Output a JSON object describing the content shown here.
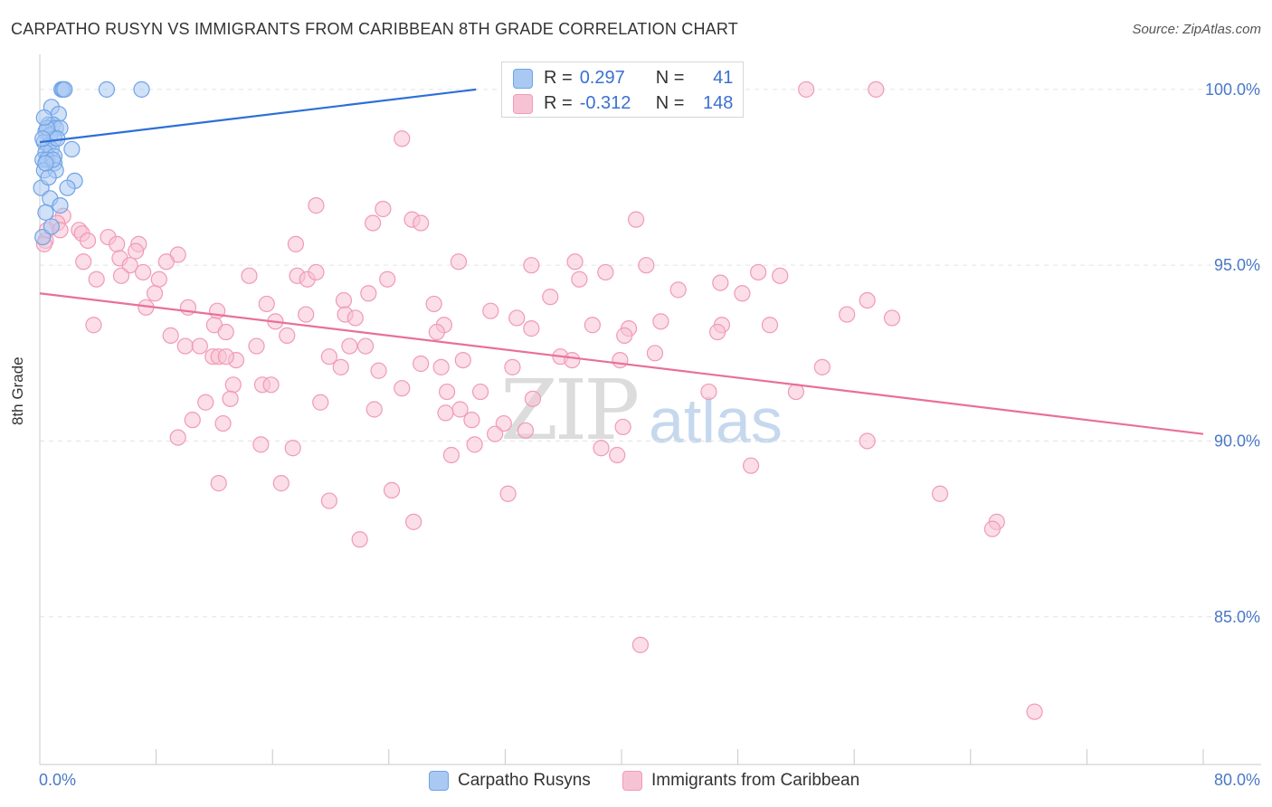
{
  "title": "CARPATHO RUSYN VS IMMIGRANTS FROM CARIBBEAN 8TH GRADE CORRELATION CHART",
  "source": "Source: ZipAtlas.com",
  "watermark": {
    "zip": "ZIP",
    "atlas": "atlas"
  },
  "stats": {
    "r_label": "R =",
    "n_label": "N =",
    "rows": [
      {
        "r": "0.297",
        "n": "41"
      },
      {
        "r": "-0.312",
        "n": "148"
      }
    ]
  },
  "chart_data": {
    "type": "scatter",
    "title": "CARPATHO RUSYN VS IMMIGRANTS FROM CARIBBEAN 8TH GRADE CORRELATION CHART",
    "xlabel": "",
    "ylabel": "8th Grade",
    "xlim": [
      0,
      80
    ],
    "ylim": [
      80.8,
      101.0
    ],
    "x_tick_labels": [
      "0.0%",
      "80.0%"
    ],
    "y_ticks": [
      85,
      90,
      95,
      100
    ],
    "y_tick_labels": [
      "85.0%",
      "90.0%",
      "95.0%",
      "100.0%"
    ],
    "grid": true,
    "legend_position": "bottom",
    "colors": {
      "blue": "#6fa3e6",
      "blue_line": "#2e6fd6",
      "blue_fill": "#a9c9f2",
      "pink": "#f09ab6",
      "pink_line": "#e8709a",
      "pink_fill": "#f7c3d4",
      "tick_text": "#4a78c7"
    },
    "series": [
      {
        "name": "Carpatho Rusyns",
        "color": "#6fa3e6",
        "trend": {
          "x": [
            0,
            30.0
          ],
          "y": [
            98.5,
            100.0
          ]
        },
        "points": [
          [
            1.5,
            100.0
          ],
          [
            1.6,
            100.0
          ],
          [
            1.7,
            100.0
          ],
          [
            4.6,
            100.0
          ],
          [
            7.0,
            100.0
          ],
          [
            0.8,
            99.5
          ],
          [
            1.3,
            99.3
          ],
          [
            0.6,
            99.0
          ],
          [
            0.9,
            99.0
          ],
          [
            1.1,
            98.9
          ],
          [
            1.4,
            98.9
          ],
          [
            0.4,
            98.8
          ],
          [
            0.7,
            98.7
          ],
          [
            1.0,
            98.6
          ],
          [
            0.3,
            98.5
          ],
          [
            0.6,
            98.4
          ],
          [
            0.8,
            98.3
          ],
          [
            2.2,
            98.3
          ],
          [
            0.4,
            98.2
          ],
          [
            1.0,
            98.1
          ],
          [
            0.2,
            98.0
          ],
          [
            0.5,
            98.0
          ],
          [
            1.0,
            97.9
          ],
          [
            0.3,
            97.7
          ],
          [
            1.1,
            97.7
          ],
          [
            2.4,
            97.4
          ],
          [
            0.1,
            97.2
          ],
          [
            1.9,
            97.2
          ],
          [
            0.7,
            96.9
          ],
          [
            1.4,
            96.7
          ],
          [
            0.4,
            96.5
          ],
          [
            0.2,
            95.8
          ],
          [
            0.5,
            98.9
          ],
          [
            0.9,
            98.0
          ],
          [
            0.3,
            99.2
          ],
          [
            1.2,
            98.6
          ],
          [
            0.6,
            97.5
          ],
          [
            0.2,
            98.6
          ],
          [
            0.8,
            96.1
          ],
          [
            0.4,
            97.9
          ],
          [
            37.4,
            100.0
          ]
        ]
      },
      {
        "name": "Immigrants from Caribbean",
        "color": "#f09ab6",
        "trend": {
          "x": [
            0,
            80
          ],
          "y": [
            94.2,
            90.2
          ]
        },
        "points": [
          [
            52.7,
            100.0
          ],
          [
            57.5,
            100.0
          ],
          [
            24.9,
            98.6
          ],
          [
            19.0,
            96.7
          ],
          [
            23.6,
            96.6
          ],
          [
            25.6,
            96.3
          ],
          [
            22.9,
            96.2
          ],
          [
            26.2,
            96.2
          ],
          [
            41.0,
            96.3
          ],
          [
            1.6,
            96.4
          ],
          [
            1.2,
            96.2
          ],
          [
            2.7,
            96.0
          ],
          [
            2.9,
            95.9
          ],
          [
            0.4,
            95.7
          ],
          [
            0.3,
            95.6
          ],
          [
            0.5,
            96.0
          ],
          [
            1.4,
            96.0
          ],
          [
            3.3,
            95.7
          ],
          [
            4.7,
            95.8
          ],
          [
            5.3,
            95.6
          ],
          [
            6.8,
            95.6
          ],
          [
            17.6,
            95.6
          ],
          [
            6.6,
            95.4
          ],
          [
            9.5,
            95.3
          ],
          [
            3.0,
            95.1
          ],
          [
            5.5,
            95.2
          ],
          [
            6.2,
            95.0
          ],
          [
            8.7,
            95.1
          ],
          [
            28.8,
            95.1
          ],
          [
            33.8,
            95.0
          ],
          [
            36.8,
            95.1
          ],
          [
            41.7,
            95.0
          ],
          [
            3.9,
            94.6
          ],
          [
            5.6,
            94.7
          ],
          [
            7.1,
            94.8
          ],
          [
            8.2,
            94.6
          ],
          [
            14.4,
            94.7
          ],
          [
            17.7,
            94.7
          ],
          [
            18.4,
            94.6
          ],
          [
            19.0,
            94.8
          ],
          [
            23.9,
            94.6
          ],
          [
            37.1,
            94.6
          ],
          [
            38.9,
            94.8
          ],
          [
            46.8,
            94.5
          ],
          [
            49.4,
            94.8
          ],
          [
            50.9,
            94.7
          ],
          [
            7.9,
            94.2
          ],
          [
            20.9,
            94.0
          ],
          [
            22.6,
            94.2
          ],
          [
            35.1,
            94.1
          ],
          [
            43.9,
            94.3
          ],
          [
            48.3,
            94.2
          ],
          [
            56.9,
            94.0
          ],
          [
            55.5,
            93.6
          ],
          [
            58.6,
            93.5
          ],
          [
            7.3,
            93.8
          ],
          [
            10.2,
            93.8
          ],
          [
            12.2,
            93.7
          ],
          [
            15.6,
            93.9
          ],
          [
            18.3,
            93.6
          ],
          [
            21.0,
            93.6
          ],
          [
            21.7,
            93.5
          ],
          [
            27.1,
            93.9
          ],
          [
            31.0,
            93.7
          ],
          [
            32.8,
            93.5
          ],
          [
            3.7,
            93.3
          ],
          [
            12.0,
            93.3
          ],
          [
            16.2,
            93.4
          ],
          [
            27.8,
            93.3
          ],
          [
            33.8,
            93.2
          ],
          [
            38.0,
            93.3
          ],
          [
            40.5,
            93.2
          ],
          [
            42.7,
            93.4
          ],
          [
            46.9,
            93.3
          ],
          [
            50.2,
            93.3
          ],
          [
            9.0,
            93.0
          ],
          [
            12.8,
            93.1
          ],
          [
            17.0,
            93.0
          ],
          [
            27.3,
            93.1
          ],
          [
            40.2,
            93.0
          ],
          [
            46.6,
            93.1
          ],
          [
            10.0,
            92.7
          ],
          [
            11.0,
            92.7
          ],
          [
            14.9,
            92.7
          ],
          [
            21.3,
            92.7
          ],
          [
            22.4,
            92.7
          ],
          [
            13.5,
            92.3
          ],
          [
            19.9,
            92.4
          ],
          [
            29.1,
            92.3
          ],
          [
            35.8,
            92.4
          ],
          [
            36.6,
            92.3
          ],
          [
            39.9,
            92.3
          ],
          [
            42.3,
            92.5
          ],
          [
            11.9,
            92.4
          ],
          [
            12.3,
            92.4
          ],
          [
            12.8,
            92.4
          ],
          [
            20.7,
            92.1
          ],
          [
            23.3,
            92.0
          ],
          [
            26.2,
            92.2
          ],
          [
            27.6,
            92.1
          ],
          [
            32.5,
            92.1
          ],
          [
            53.8,
            92.1
          ],
          [
            13.3,
            91.6
          ],
          [
            15.3,
            91.6
          ],
          [
            15.9,
            91.6
          ],
          [
            24.9,
            91.5
          ],
          [
            28.0,
            91.4
          ],
          [
            30.3,
            91.4
          ],
          [
            13.1,
            91.2
          ],
          [
            11.4,
            91.1
          ],
          [
            19.3,
            91.1
          ],
          [
            33.9,
            91.2
          ],
          [
            46.0,
            91.4
          ],
          [
            52.0,
            91.4
          ],
          [
            28.9,
            90.9
          ],
          [
            23.0,
            90.9
          ],
          [
            27.9,
            90.8
          ],
          [
            29.7,
            90.6
          ],
          [
            10.5,
            90.6
          ],
          [
            12.6,
            90.5
          ],
          [
            31.9,
            90.5
          ],
          [
            33.4,
            90.3
          ],
          [
            40.1,
            90.4
          ],
          [
            31.3,
            90.2
          ],
          [
            9.5,
            90.1
          ],
          [
            15.2,
            89.9
          ],
          [
            29.9,
            89.9
          ],
          [
            17.4,
            89.8
          ],
          [
            38.6,
            89.8
          ],
          [
            56.9,
            90.0
          ],
          [
            28.3,
            89.6
          ],
          [
            39.7,
            89.6
          ],
          [
            48.9,
            89.3
          ],
          [
            12.3,
            88.8
          ],
          [
            16.6,
            88.8
          ],
          [
            24.2,
            88.6
          ],
          [
            32.2,
            88.5
          ],
          [
            19.9,
            88.3
          ],
          [
            61.9,
            88.5
          ],
          [
            25.7,
            87.7
          ],
          [
            65.8,
            87.7
          ],
          [
            65.5,
            87.5
          ],
          [
            22.0,
            87.2
          ],
          [
            41.3,
            84.2
          ],
          [
            68.4,
            82.3
          ]
        ]
      }
    ]
  },
  "legend": {
    "items": [
      {
        "label": "Carpatho Rusyns",
        "color": "#a9c9f2",
        "border": "#6fa3e6"
      },
      {
        "label": "Immigrants from Caribbean",
        "color": "#f7c3d4",
        "border": "#f09ab6"
      }
    ]
  }
}
